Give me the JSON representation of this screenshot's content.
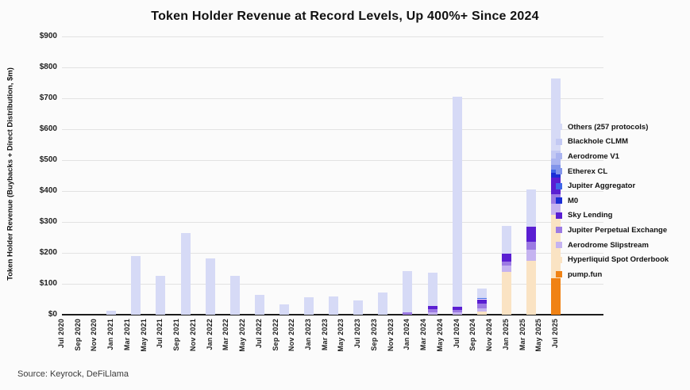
{
  "title": "Token Holder Revenue at Record Levels, Up 400%+ Since 2024",
  "source": "Source: Keyrock, DeFiLlama",
  "y_axis": {
    "label": "Token Holder Revenue (Buybacks + Direct Distribution, $m)",
    "tick_labels": [
      "$0",
      "$100",
      "$200",
      "$300",
      "$400",
      "$500",
      "$600",
      "$700",
      "$800",
      "$900"
    ]
  },
  "x_axis": {
    "tick_labels": [
      "Jul 2020",
      "Sep 2020",
      "Nov 2020",
      "Jan 2021",
      "Mar 2021",
      "May 2021",
      "Jul 2021",
      "Sep 2021",
      "Nov 2021",
      "Jan 2022",
      "Mar 2022",
      "May 2022",
      "Jul 2022",
      "Sep 2022",
      "Nov 2022",
      "Jan 2023",
      "Mar 2023",
      "May 2023",
      "Jul 2023",
      "Sep 2023",
      "Nov 2023",
      "Jan 2024",
      "Mar 2024",
      "May 2024",
      "Jul 2024",
      "Sep 2024",
      "Nov 2024",
      "Jan 2025",
      "Mar 2025",
      "May 2025",
      "Jul 2025"
    ]
  },
  "chart_data": {
    "type": "bar",
    "stacked": true,
    "title": "Token Holder Revenue at Record Levels, Up 400%+ Since 2024",
    "ylabel": "Token Holder Revenue (Buybacks + Direct Distribution, $m)",
    "ylim": [
      0,
      900
    ],
    "grid": true,
    "legend_position": "right",
    "x_unit": "quarter",
    "categories": [
      "Jan 2021",
      "Apr 2021",
      "Jul 2021",
      "Oct 2021",
      "Jan 2022",
      "Apr 2022",
      "Jul 2022",
      "Oct 2022",
      "Jan 2023",
      "Apr 2023",
      "Jul 2023",
      "Oct 2023",
      "Jan 2024",
      "Apr 2024",
      "Jul 2024",
      "Oct 2024",
      "Jan 2025",
      "Apr 2025",
      "Jul 2025"
    ],
    "series": [
      {
        "name": "Others (257 protocols)",
        "color": "#d6daf6",
        "values": [
          12,
          190,
          125,
          265,
          182,
          125,
          64,
          33,
          57,
          60,
          46,
          71,
          132,
          108,
          680,
          30,
          90,
          120,
          235
        ]
      },
      {
        "name": "Blackhole CLMM",
        "color": "#c3c9f3",
        "values": [
          0,
          0,
          0,
          0,
          0,
          0,
          0,
          0,
          0,
          0,
          0,
          0,
          0,
          0,
          0,
          0,
          0,
          0,
          25
        ]
      },
      {
        "name": "Aerodrome V1",
        "color": "#aab4f0",
        "values": [
          0,
          0,
          0,
          0,
          0,
          0,
          0,
          0,
          0,
          0,
          0,
          0,
          0,
          0,
          0,
          0,
          0,
          0,
          20
        ]
      },
      {
        "name": "Etherex CL",
        "color": "#8295ea",
        "values": [
          0,
          0,
          0,
          0,
          0,
          0,
          0,
          0,
          0,
          0,
          0,
          0,
          0,
          0,
          0,
          0,
          0,
          0,
          15
        ]
      },
      {
        "name": "Jupiter Aggregator",
        "color": "#3f66e8",
        "values": [
          0,
          0,
          0,
          0,
          0,
          0,
          0,
          0,
          0,
          0,
          0,
          0,
          0,
          0,
          0,
          5,
          0,
          0,
          12
        ]
      },
      {
        "name": "M0",
        "color": "#1b2ed6",
        "values": [
          0,
          0,
          0,
          0,
          0,
          0,
          0,
          0,
          0,
          0,
          0,
          0,
          0,
          0,
          0,
          0,
          0,
          0,
          14
        ]
      },
      {
        "name": "Sky Lending",
        "color": "#5a1ed2",
        "values": [
          0,
          0,
          0,
          0,
          0,
          0,
          0,
          0,
          0,
          0,
          0,
          0,
          0,
          12,
          10,
          15,
          26,
          50,
          55
        ]
      },
      {
        "name": "Jupiter Perpetual Exchange",
        "color": "#9c7ae3",
        "values": [
          0,
          0,
          0,
          0,
          0,
          0,
          0,
          0,
          0,
          0,
          0,
          0,
          8,
          10,
          8,
          15,
          13,
          26,
          30
        ]
      },
      {
        "name": "Aerodrome Slipstream",
        "color": "#c5b3f0",
        "values": [
          0,
          0,
          0,
          0,
          0,
          0,
          0,
          0,
          0,
          0,
          0,
          0,
          0,
          7,
          7,
          10,
          20,
          34,
          35
        ]
      },
      {
        "name": "Hyperliquid Spot Orderbook",
        "color": "#fae3c3",
        "values": [
          0,
          0,
          0,
          0,
          0,
          0,
          0,
          0,
          0,
          0,
          0,
          0,
          0,
          0,
          0,
          10,
          139,
          175,
          205
        ]
      },
      {
        "name": "pump.fun",
        "color": "#f08214",
        "values": [
          0,
          0,
          0,
          0,
          0,
          0,
          0,
          0,
          0,
          0,
          0,
          0,
          0,
          0,
          0,
          0,
          0,
          0,
          119
        ]
      }
    ]
  }
}
